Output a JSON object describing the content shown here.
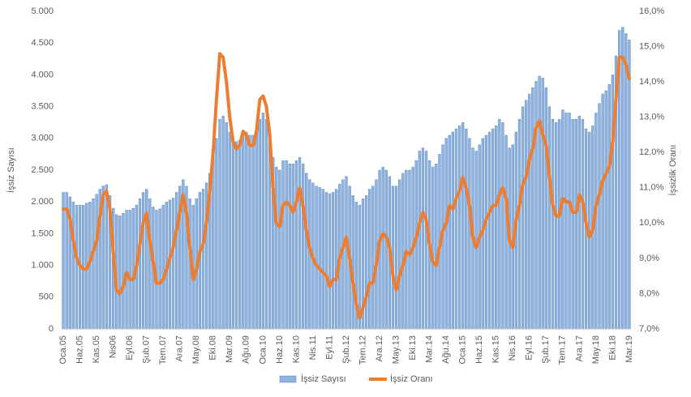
{
  "chart_data": {
    "type": "bar+line",
    "y_label": "İşsiz Sayısı",
    "y2_label": "İşsizlik Oranı",
    "categories": [
      "Oca.05",
      null,
      null,
      null,
      null,
      "Haz.05",
      null,
      null,
      null,
      null,
      "Kas.05",
      null,
      null,
      null,
      null,
      "Nis06",
      null,
      null,
      null,
      null,
      "Eyl.06",
      null,
      null,
      null,
      null,
      "Şub.07",
      null,
      null,
      null,
      null,
      "Tem.07",
      null,
      null,
      null,
      null,
      "Ara.07",
      null,
      null,
      null,
      null,
      "May.08",
      null,
      null,
      null,
      null,
      "Eki.08",
      null,
      null,
      null,
      null,
      "Mar.09",
      null,
      null,
      null,
      null,
      "Ağu.09",
      null,
      null,
      null,
      null,
      "Oca.10",
      null,
      null,
      null,
      null,
      "Haz.10",
      null,
      null,
      null,
      null,
      "Kas.10",
      null,
      null,
      null,
      null,
      "Nis.11",
      null,
      null,
      null,
      null,
      "Eyl.11",
      null,
      null,
      null,
      null,
      "Şub.12",
      null,
      null,
      null,
      null,
      "Tem.12",
      null,
      null,
      null,
      null,
      "Ara.12",
      null,
      null,
      null,
      null,
      "May.13",
      null,
      null,
      null,
      null,
      "Eki.13",
      null,
      null,
      null,
      null,
      "Mar.14",
      null,
      null,
      null,
      null,
      "Ağu.14",
      null,
      null,
      null,
      null,
      "Oca.15",
      null,
      null,
      null,
      null,
      "Haz.15",
      null,
      null,
      null,
      null,
      "Kas.15",
      null,
      null,
      null,
      null,
      "Nis.16",
      null,
      null,
      null,
      null,
      "Eyl.16",
      null,
      null,
      null,
      null,
      "Şub.17",
      null,
      null,
      null,
      null,
      "Tem.17",
      null,
      null,
      null,
      null,
      "Ara.17",
      null,
      null,
      null,
      null,
      "May.18",
      null,
      null,
      null,
      null,
      "Eki.18",
      null,
      null,
      null,
      null,
      "Mar.19"
    ],
    "series": [
      {
        "name": "İşsiz Sayısı",
        "type": "bar",
        "color": "#8fb2de",
        "values": [
          2150,
          2150,
          2080,
          2000,
          1950,
          1950,
          1950,
          1980,
          2000,
          2050,
          2120,
          2200,
          2250,
          2270,
          2100,
          1900,
          1800,
          1780,
          1820,
          1870,
          1870,
          1900,
          1950,
          2050,
          2150,
          2200,
          2050,
          1920,
          1870,
          1890,
          1950,
          2000,
          2030,
          2060,
          2150,
          2250,
          2350,
          2250,
          2050,
          1950,
          2050,
          2150,
          2200,
          2300,
          2450,
          2700,
          3000,
          3300,
          3350,
          3250,
          3100,
          2950,
          2950,
          2970,
          3050,
          3100,
          3050,
          3050,
          3100,
          3300,
          3400,
          3300,
          3100,
          2700,
          2550,
          2500,
          2650,
          2650,
          2600,
          2600,
          2650,
          2700,
          2600,
          2450,
          2350,
          2300,
          2250,
          2230,
          2200,
          2150,
          2130,
          2150,
          2200,
          2280,
          2350,
          2400,
          2250,
          2100,
          2000,
          1950,
          2050,
          2100,
          2200,
          2250,
          2350,
          2500,
          2550,
          2500,
          2400,
          2250,
          2250,
          2350,
          2450,
          2500,
          2500,
          2550,
          2650,
          2800,
          2850,
          2800,
          2650,
          2550,
          2600,
          2750,
          2900,
          3000,
          3050,
          3100,
          3150,
          3200,
          3250,
          3150,
          3000,
          2850,
          2800,
          2900,
          3000,
          3050,
          3100,
          3150,
          3200,
          3300,
          3250,
          3050,
          2850,
          2900,
          3100,
          3300,
          3500,
          3600,
          3700,
          3800,
          3900,
          3980,
          3950,
          3800,
          3500,
          3300,
          3250,
          3300,
          3450,
          3400,
          3400,
          3300,
          3300,
          3350,
          3300,
          3150,
          3100,
          3200,
          3400,
          3550,
          3700,
          3750,
          3850,
          4000,
          4300,
          4700,
          4750,
          4650,
          4550
        ]
      },
      {
        "name": "İşsiz Oranı",
        "type": "line",
        "axis": "y2",
        "color": "#ed7d31",
        "values": [
          10.4,
          10.4,
          10.1,
          9.5,
          9.0,
          8.8,
          8.7,
          8.7,
          8.9,
          9.2,
          9.5,
          10.2,
          10.8,
          10.9,
          10.4,
          9.2,
          8.1,
          8.0,
          8.2,
          8.6,
          8.4,
          8.4,
          8.8,
          9.4,
          10.0,
          10.3,
          9.5,
          8.9,
          8.3,
          8.3,
          8.4,
          8.7,
          9.0,
          9.3,
          9.8,
          10.3,
          10.8,
          10.3,
          9.3,
          8.4,
          8.7,
          9.2,
          9.4,
          10.0,
          10.9,
          12.0,
          13.5,
          14.8,
          14.7,
          14.0,
          13.0,
          12.3,
          12.1,
          12.2,
          12.6,
          12.5,
          12.2,
          12.2,
          12.6,
          13.5,
          13.6,
          13.3,
          12.5,
          11.0,
          10.0,
          9.9,
          10.5,
          10.6,
          10.5,
          10.3,
          10.6,
          11.0,
          10.5,
          9.8,
          9.3,
          9.0,
          8.8,
          8.7,
          8.6,
          8.5,
          8.2,
          8.4,
          8.4,
          9.0,
          9.3,
          9.6,
          9.0,
          8.3,
          7.7,
          7.3,
          7.6,
          7.9,
          8.3,
          8.3,
          8.8,
          9.5,
          9.7,
          9.6,
          9.3,
          8.5,
          8.1,
          8.5,
          8.8,
          9.2,
          9.1,
          9.3,
          9.6,
          10.0,
          10.3,
          10.1,
          9.4,
          8.9,
          8.8,
          9.3,
          9.8,
          10.0,
          10.5,
          10.4,
          10.7,
          10.9,
          11.3,
          11.0,
          10.5,
          9.6,
          9.3,
          9.6,
          9.8,
          10.1,
          10.3,
          10.5,
          10.5,
          10.8,
          11.0,
          10.7,
          9.5,
          9.3,
          10.1,
          10.5,
          11.1,
          11.3,
          11.8,
          12.1,
          12.7,
          12.9,
          12.5,
          12.2,
          11.3,
          10.5,
          10.2,
          10.2,
          10.7,
          10.6,
          10.6,
          10.3,
          10.3,
          10.8,
          10.6,
          10.0,
          9.6,
          9.8,
          10.5,
          10.8,
          11.2,
          11.4,
          11.6,
          12.3,
          13.5,
          14.7,
          14.7,
          14.5,
          14.1
        ]
      }
    ],
    "ylim": [
      0,
      5000
    ],
    "yticks": [
      0,
      500,
      {
        "value": 1000,
        "label": "1.000"
      },
      {
        "value": 1500,
        "label": "1.500"
      },
      {
        "value": 2000,
        "label": "2.000"
      },
      {
        "value": 2500,
        "label": "2.500"
      },
      {
        "value": 3000,
        "label": "3.000"
      },
      {
        "value": 3500,
        "label": "3.500"
      },
      {
        "value": 4000,
        "label": "4.000"
      },
      {
        "value": 4500,
        "label": "4.500"
      },
      {
        "value": 5000,
        "label": "5.000"
      }
    ],
    "y2lim": [
      7,
      16
    ],
    "y2ticks": [
      {
        "value": 7,
        "label": "7,0%"
      },
      {
        "value": 8,
        "label": "8,0%"
      },
      {
        "value": 9,
        "label": "9,0%"
      },
      {
        "value": 10,
        "label": "10,0%"
      },
      {
        "value": 11,
        "label": "11,0%"
      },
      {
        "value": 12,
        "label": "12,0%"
      },
      {
        "value": 13,
        "label": "13,0%"
      },
      {
        "value": 14,
        "label": "14,0%"
      },
      {
        "value": 15,
        "label": "15,0%"
      },
      {
        "value": 16,
        "label": "16,0%"
      }
    ],
    "grid": false,
    "legend": "bottom"
  }
}
